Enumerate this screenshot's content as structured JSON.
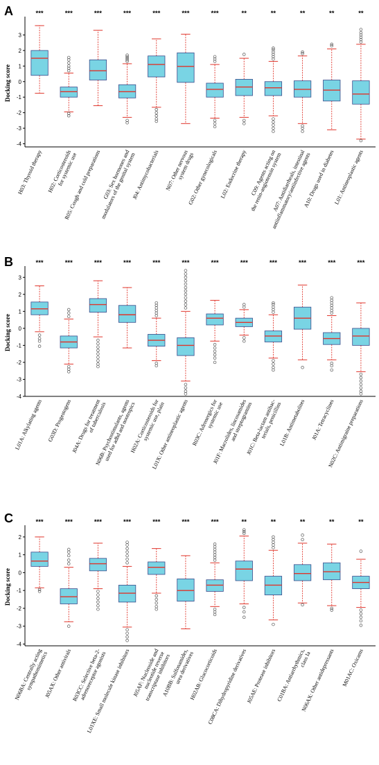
{
  "colors": {
    "box_fill": "#79d4e4",
    "box_edge": "#3a4a8a",
    "median": "#e0342a",
    "whisker": "#e0342a",
    "outlier": "#555555",
    "axis": "#000000"
  },
  "chart_data": [
    {
      "panel": "A",
      "type": "box",
      "ylabel": "Docking score",
      "ylim": [
        -4.2,
        4
      ],
      "yticks": [
        -4,
        -3,
        -2,
        -1,
        0,
        1,
        2,
        3
      ],
      "categories": [
        {
          "label": [
            "H03: Thyroid therapy"
          ],
          "sig": "***",
          "min": -0.75,
          "q1": 0.4,
          "median": 1.5,
          "q3": 2.0,
          "max": 3.6,
          "outliers": []
        },
        {
          "label": [
            "H02: Corticosteroids",
            "for systemic use"
          ],
          "sig": "***",
          "min": -1.95,
          "q1": -1.0,
          "median": -0.65,
          "q3": -0.35,
          "max": 0.55,
          "outliers": [
            0.7,
            0.85,
            1.0,
            1.2,
            1.4,
            1.55,
            -2.05,
            -2.2
          ]
        },
        {
          "label": [
            "R05: Cough and cold preparations"
          ],
          "sig": "***",
          "min": -1.55,
          "q1": 0.1,
          "median": 0.7,
          "q3": 1.4,
          "max": 3.3,
          "outliers": []
        },
        {
          "label": [
            "G03: Sex hormones and",
            "modulators of the genital system"
          ],
          "sig": "***",
          "min": -2.3,
          "q1": -1.05,
          "median": -0.65,
          "q3": -0.2,
          "max": 1.15,
          "outliers": [
            1.3,
            1.4,
            1.5,
            1.6,
            1.7,
            -2.5,
            -2.65
          ]
        },
        {
          "label": [
            "J04: Antimycobacterials"
          ],
          "sig": "***",
          "min": -1.65,
          "q1": 0.3,
          "median": 1.1,
          "q3": 1.65,
          "max": 2.75,
          "outliers": [
            -1.8,
            -2.0,
            -2.2,
            -2.4,
            -2.55
          ]
        },
        {
          "label": [
            "N07: Other nervous",
            "system drugs"
          ],
          "sig": "***",
          "min": -2.7,
          "q1": -0.05,
          "median": 0.98,
          "q3": 1.85,
          "max": 3.05,
          "outliers": []
        },
        {
          "label": [
            "G02: Other gynecologicals"
          ],
          "sig": "***",
          "min": -2.35,
          "q1": -1.0,
          "median": -0.5,
          "q3": -0.1,
          "max": 1.1,
          "outliers": [
            1.3,
            1.45,
            1.6,
            -2.5,
            -2.7,
            -2.9
          ]
        },
        {
          "label": [
            "L02: Endocrine therapy"
          ],
          "sig": "**",
          "min": -2.3,
          "q1": -0.9,
          "median": -0.35,
          "q3": 0.15,
          "max": 1.5,
          "outliers": [
            1.75,
            -2.5,
            -2.7
          ]
        },
        {
          "label": [
            "C09: Agents acting on",
            "the renin-angiotensin system"
          ],
          "sig": "**",
          "min": -2.2,
          "q1": -0.9,
          "median": -0.4,
          "q3": 0.0,
          "max": 1.3,
          "outliers": [
            1.45,
            1.6,
            1.75,
            1.9,
            2.05,
            2.15,
            -2.4,
            -2.6,
            -2.8,
            -3.0,
            -3.2
          ]
        },
        {
          "label": [
            "A07: Antidiarrheals, intestinal",
            "antiinflammatory/antiinfective agents"
          ],
          "sig": "**",
          "min": -2.7,
          "q1": -1.0,
          "median": -0.5,
          "q3": 0.05,
          "max": 1.65,
          "outliers": [
            1.8,
            1.9,
            -2.85,
            -3.0,
            -3.2
          ]
        },
        {
          "label": [
            "A10: Drugs used in diabetes"
          ],
          "sig": "**",
          "min": -3.1,
          "q1": -1.25,
          "median": -0.55,
          "q3": 0.1,
          "max": 2.1,
          "outliers": [
            2.3,
            2.4
          ]
        },
        {
          "label": [
            "L01: Antineoplastic agents"
          ],
          "sig": "**",
          "min": -3.7,
          "q1": -1.45,
          "median": -0.8,
          "q3": 0.05,
          "max": 2.4,
          "outliers": [
            2.55,
            2.7,
            2.85,
            3.0,
            3.15,
            3.35,
            -3.8
          ]
        }
      ]
    },
    {
      "panel": "B",
      "type": "box",
      "ylabel": "Docking score",
      "ylim": [
        -4,
        3.5
      ],
      "yticks": [
        -4,
        -3,
        -2,
        -1,
        0,
        1,
        2,
        3
      ],
      "categories": [
        {
          "label": [
            "L01A: Alkylating agents"
          ],
          "sig": "***",
          "min": -0.2,
          "q1": 0.8,
          "median": 1.15,
          "q3": 1.55,
          "max": 2.5,
          "outliers": [
            -0.4,
            -0.6,
            -0.75,
            -1.05
          ]
        },
        {
          "label": [
            "G03D: Progestogens"
          ],
          "sig": "***",
          "min": -2.1,
          "q1": -1.15,
          "median": -0.8,
          "q3": -0.45,
          "max": 0.55,
          "outliers": [
            0.7,
            0.9,
            1.1,
            -2.25,
            -2.4,
            -2.55
          ]
        },
        {
          "label": [
            "J04A: Drugs for treatment",
            "of tuberculosis"
          ],
          "sig": "***",
          "min": -0.5,
          "q1": 0.95,
          "median": 1.4,
          "q3": 1.75,
          "max": 2.8,
          "outliers": [
            -0.7,
            -0.9,
            -1.1,
            -1.3,
            -1.5,
            -1.7,
            -1.9,
            -2.1,
            -2.25
          ]
        },
        {
          "label": [
            "N06B: Psychostimulants, agents",
            "used for adhd and nootropics"
          ],
          "sig": "***",
          "min": -1.15,
          "q1": 0.35,
          "median": 0.8,
          "q3": 1.35,
          "max": 2.4,
          "outliers": []
        },
        {
          "label": [
            "H02A: Corticosteroids for",
            "systemic use, plain"
          ],
          "sig": "***",
          "min": -1.9,
          "q1": -1.05,
          "median": -0.7,
          "q3": -0.35,
          "max": 0.6,
          "outliers": [
            0.75,
            0.9,
            1.05,
            1.2,
            1.35,
            1.5,
            -2.05,
            -2.2
          ]
        },
        {
          "label": [
            "L01X: Other antineoplastic agents"
          ],
          "sig": "***",
          "min": -3.1,
          "q1": -1.6,
          "median": -1.0,
          "q3": -0.55,
          "max": 1.0,
          "outliers": [
            1.2,
            1.4,
            1.6,
            1.8,
            2.0,
            2.2,
            2.4,
            2.6,
            2.8,
            3.0,
            3.2,
            3.4,
            -3.3,
            -3.5,
            -3.7,
            -3.85
          ]
        },
        {
          "label": [
            "R03C: Adrenergics for",
            "systemic use"
          ],
          "sig": "***",
          "min": -0.75,
          "q1": 0.2,
          "median": 0.6,
          "q3": 0.85,
          "max": 1.65,
          "outliers": [
            -0.95,
            -1.15,
            -1.35,
            -1.55,
            -1.75,
            -2.0
          ]
        },
        {
          "label": [
            "J01F: Macrolides, lincosamides",
            "and streptogramins"
          ],
          "sig": "***",
          "min": -0.4,
          "q1": 0.1,
          "median": 0.35,
          "q3": 0.6,
          "max": 1.1,
          "outliers": [
            1.25,
            1.4,
            -0.55,
            -0.75
          ]
        },
        {
          "label": [
            "J01C: Beta-lactam antibac-",
            "terials, penicillins"
          ],
          "sig": "***",
          "min": -1.75,
          "q1": -0.8,
          "median": -0.45,
          "q3": -0.15,
          "max": 0.8,
          "outliers": [
            0.95,
            1.1,
            1.25,
            1.4,
            1.5,
            -1.9,
            -2.1,
            -2.3,
            -2.45
          ]
        },
        {
          "label": [
            "L01B: Antimetabolites"
          ],
          "sig": "***",
          "min": -1.85,
          "q1": -0.05,
          "median": 0.6,
          "q3": 1.25,
          "max": 2.55,
          "outliers": [
            -2.3
          ]
        },
        {
          "label": [
            "J01A: Tetracyclines"
          ],
          "sig": "***",
          "min": -1.85,
          "q1": -0.95,
          "median": -0.6,
          "q3": -0.25,
          "max": 0.75,
          "outliers": [
            0.9,
            1.05,
            1.2,
            1.35,
            1.5,
            1.65,
            1.8,
            -2.05,
            -2.2,
            -2.45
          ]
        },
        {
          "label": [
            "N02C: Antimigraine preparations"
          ],
          "sig": "***",
          "min": -2.55,
          "q1": -1.0,
          "median": -0.45,
          "q3": 0.0,
          "max": 1.5,
          "outliers": [
            -2.7,
            -2.9,
            -3.1,
            -3.3,
            -3.5,
            -3.7,
            -3.85
          ]
        }
      ]
    },
    {
      "panel": "C",
      "type": "box",
      "ylabel": "Docking score",
      "ylim": [
        -4.1,
        2.5
      ],
      "yticks": [
        -4,
        -3,
        -2,
        -1,
        0,
        1,
        2
      ],
      "categories": [
        {
          "label": [
            "N06BA: Centrally acting",
            "sympathomimetics"
          ],
          "sig": "***",
          "min": -0.85,
          "q1": 0.35,
          "median": 0.65,
          "q3": 1.15,
          "max": 2.0,
          "outliers": [
            -0.95,
            -1.05
          ]
        },
        {
          "label": [
            "J05AX: Other antivirals"
          ],
          "sig": "***",
          "min": -2.75,
          "q1": -1.75,
          "median": -1.35,
          "q3": -0.9,
          "max": 0.3,
          "outliers": [
            0.5,
            0.7,
            0.95,
            1.15,
            1.3,
            -3.0
          ]
        },
        {
          "label": [
            "R03CC: Selective beta-2-",
            "adrenoreceptor agonists"
          ],
          "sig": "***",
          "min": -0.9,
          "q1": 0.1,
          "median": 0.5,
          "q3": 0.8,
          "max": 1.65,
          "outliers": [
            -1.05,
            -1.25,
            -1.45,
            -1.65,
            -1.85,
            -2.05
          ]
        },
        {
          "label": [
            "L01XE: Small molecule kinase inhibitors"
          ],
          "sig": "***",
          "min": -3.05,
          "q1": -1.65,
          "median": -1.15,
          "q3": -0.7,
          "max": 0.35,
          "outliers": [
            0.55,
            0.75,
            0.95,
            1.15,
            1.35,
            1.55,
            1.7,
            -3.2,
            -3.4,
            -3.6,
            -3.8
          ]
        },
        {
          "label": [
            "J05AF: Nucleoside and",
            "nucleotide reverse",
            "transcriptase inhibitors"
          ],
          "sig": "***",
          "min": -1.15,
          "q1": -0.1,
          "median": 0.3,
          "q3": 0.6,
          "max": 1.35,
          "outliers": [
            -1.3,
            -1.5,
            -1.7,
            -1.9,
            -2.05
          ]
        },
        {
          "label": [
            "A10BB: Sulfonamides,",
            "urea derivatives"
          ],
          "sig": "***",
          "min": -3.15,
          "q1": -1.6,
          "median": -1.0,
          "q3": -0.35,
          "max": 0.95,
          "outliers": []
        },
        {
          "label": [
            "H02AB: Glucocorticoids"
          ],
          "sig": "***",
          "min": -1.9,
          "q1": -1.05,
          "median": -0.7,
          "q3": -0.4,
          "max": 0.55,
          "outliers": [
            0.7,
            0.85,
            1.0,
            1.15,
            1.3,
            1.45,
            1.6,
            -2.05,
            -2.2,
            -2.35
          ]
        },
        {
          "label": [
            "C08CA: Dihydropyridine derivatives"
          ],
          "sig": "**",
          "min": -1.75,
          "q1": -0.45,
          "median": 0.2,
          "q3": 0.65,
          "max": 2.05,
          "outliers": [
            2.2,
            2.3,
            2.4,
            -1.95,
            -2.2,
            -2.5
          ]
        },
        {
          "label": [
            "J05AE: Protease inhibitors"
          ],
          "sig": "**",
          "min": -2.65,
          "q1": -1.25,
          "median": -0.7,
          "q3": -0.2,
          "max": 1.25,
          "outliers": [
            1.4,
            1.55,
            1.7,
            1.85,
            2.0,
            -2.9
          ]
        },
        {
          "label": [
            "C01BA: Antiarrhythmics,",
            "class Ia"
          ],
          "sig": "**",
          "min": -1.7,
          "q1": -0.45,
          "median": -0.05,
          "q3": 0.45,
          "max": 1.65,
          "outliers": [
            1.85,
            2.1,
            -1.8
          ]
        },
        {
          "label": [
            "N06AX: Other antidepressants"
          ],
          "sig": "**",
          "min": -1.85,
          "q1": -0.4,
          "median": 0.05,
          "q3": 0.55,
          "max": 1.6,
          "outliers": [
            -2.0,
            -2.1
          ]
        },
        {
          "label": [
            "M01AC: Oxicams"
          ],
          "sig": "**",
          "min": -1.95,
          "q1": -0.9,
          "median": -0.55,
          "q3": -0.2,
          "max": 0.75,
          "outliers": [
            1.2,
            -2.1,
            -2.3,
            -2.5,
            -2.7,
            -2.95
          ]
        }
      ]
    }
  ]
}
